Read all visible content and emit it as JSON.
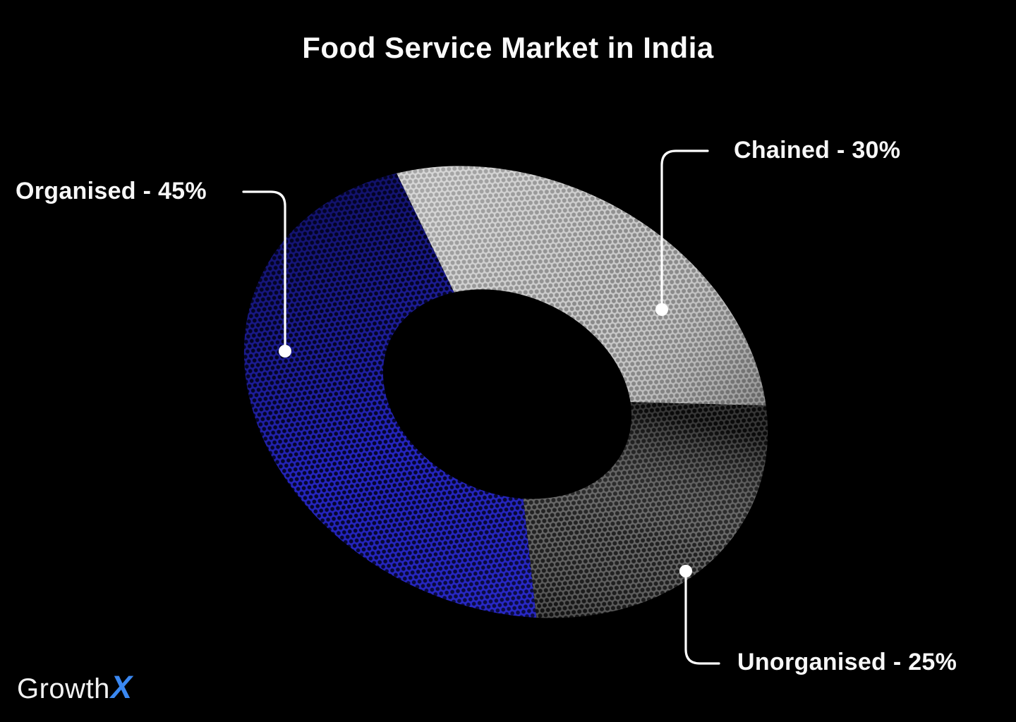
{
  "title": "Food Service Market in India",
  "chart_data": {
    "type": "pie",
    "donut": true,
    "title": "Food Service Market in India",
    "texture": "halftone-dots",
    "legend_position": "external-callouts",
    "categories": [
      "Chained",
      "Unorganised",
      "Organised"
    ],
    "values": [
      30,
      25,
      45
    ],
    "segments": [
      {
        "id": "chained",
        "category": "Chained",
        "value": 30,
        "label": "Chained - 30%",
        "base_color": "#c6c6c6",
        "dot_color": "#838383"
      },
      {
        "id": "unorganised",
        "category": "Unorganised",
        "value": 25,
        "label": "Unorganised - 25%",
        "base_color": "#5a5a5a",
        "dot_color": "#111111"
      },
      {
        "id": "organised",
        "category": "Organised",
        "value": 45,
        "label": "Organised - 45%",
        "base_color": "#2525c0",
        "dot_color": "#06062e"
      }
    ]
  },
  "callouts": {
    "organised": {
      "label": "Organised - 45%"
    },
    "chained": {
      "label": "Chained - 30%"
    },
    "unorganised": {
      "label": "Unorganised - 25%"
    }
  },
  "logo": {
    "name": "GrowthX",
    "part_white": "Growth",
    "part_blue": "X",
    "blue_color": "#3a88f2"
  },
  "colors": {
    "background": "#000000",
    "text": "#f7f7f7",
    "leader_line": "#ffffff"
  }
}
